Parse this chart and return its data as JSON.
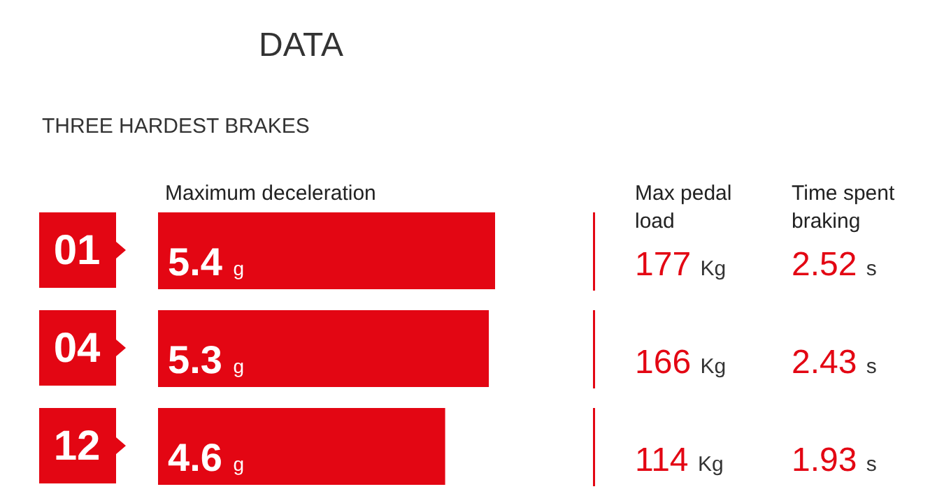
{
  "chart_data": [
    {
      "type": "bar",
      "orientation": "horizontal",
      "title": "DATA",
      "subtitle": "THREE HARDEST BRAKES",
      "xlabel": "Maximum deceleration",
      "categories": [
        "01",
        "04",
        "12"
      ],
      "values": [
        5.4,
        5.3,
        4.6
      ],
      "value_labels": [
        "5.4 g",
        "5.3 g",
        "4.6 g"
      ],
      "color": "#e30613"
    },
    {
      "type": "other",
      "title": "Max pedal load",
      "values": [
        177,
        166,
        114
      ],
      "value_labels": [
        "177 Kg",
        "166 Kg",
        "114 Kg"
      ],
      "color": "#e30613"
    },
    {
      "type": "other",
      "title": "Time spent braking",
      "values": [
        2.52,
        2.43,
        1.93
      ],
      "value_labels": [
        "2.52 s",
        "2.43 s",
        "1.93 s"
      ],
      "color": "#e30613"
    }
  ]
}
